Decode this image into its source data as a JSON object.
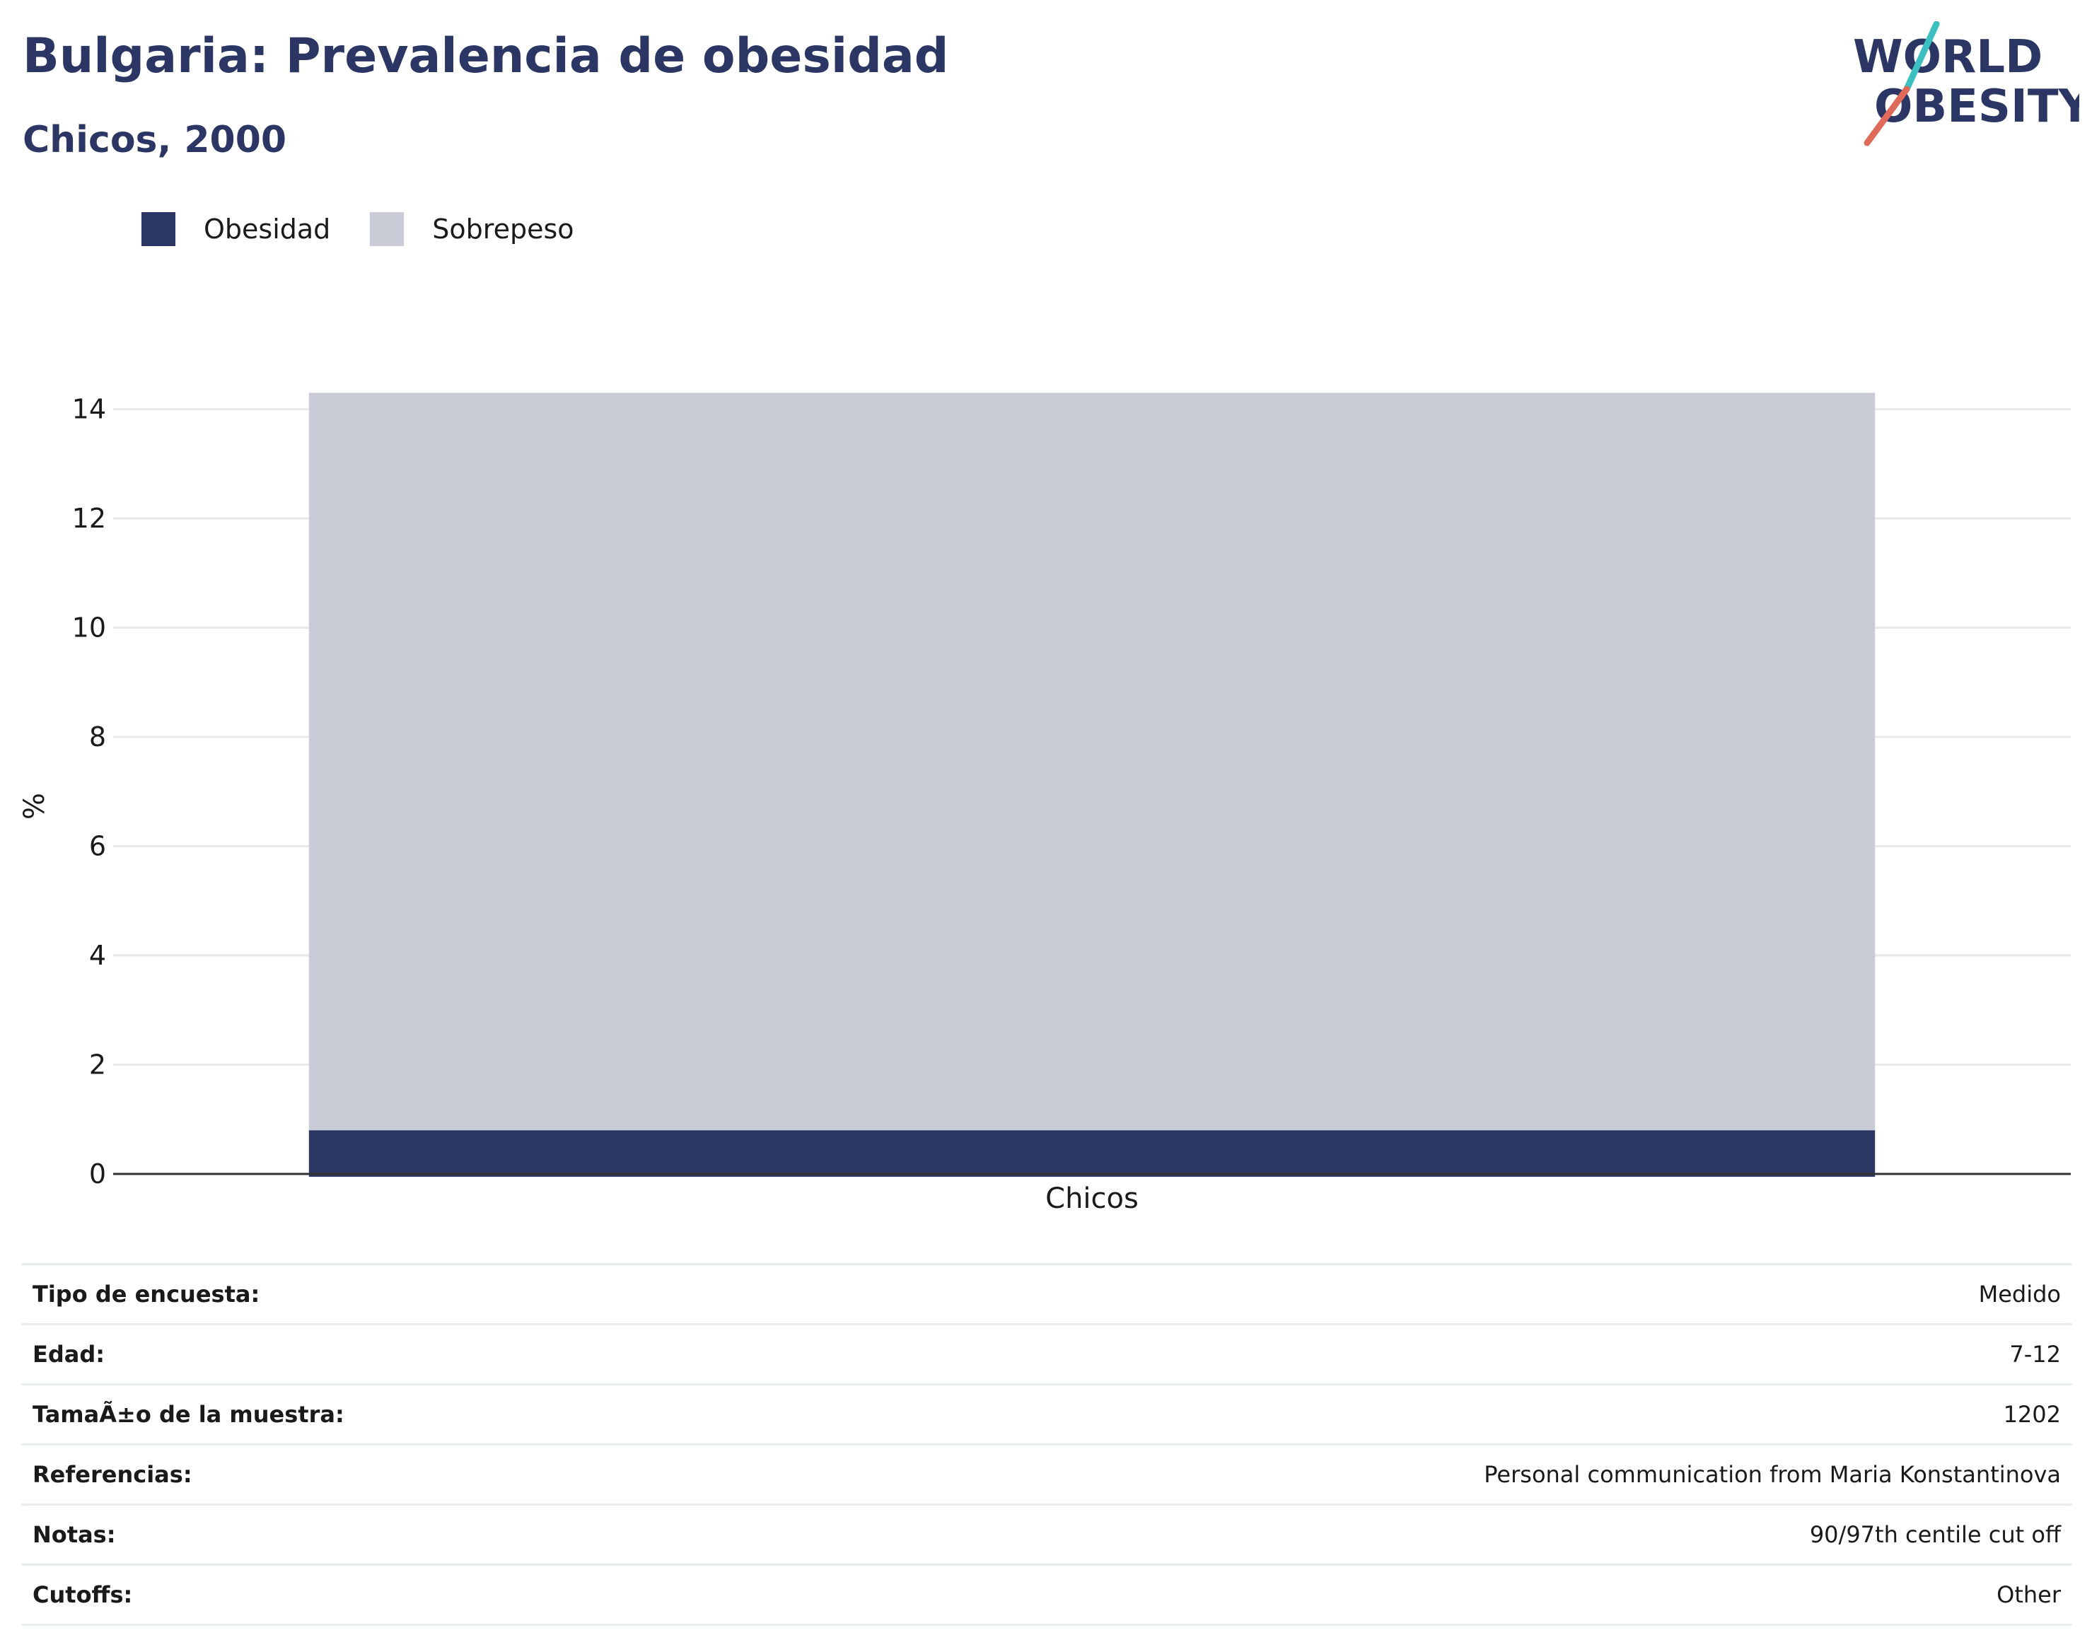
{
  "header": {
    "title": "Bulgaria: Prevalencia de obesidad",
    "subtitle": "Chicos, 2000",
    "logo_line1": "WORLD",
    "logo_line2": "OBESITY"
  },
  "colors": {
    "obesity": "#2b3664",
    "overweight": "#c9ccd7",
    "title": "#2b3664",
    "grid": "#e8e8e8",
    "axis": "#333333",
    "logo_teal": "#3bbfc1",
    "logo_coral": "#e06a5a"
  },
  "legend": [
    {
      "label": "Obesidad",
      "color": "#2b3664"
    },
    {
      "label": "Sobrepeso",
      "color": "#c9ccd7"
    }
  ],
  "chart_data": {
    "type": "bar",
    "stacked": true,
    "categories": [
      "Chicos"
    ],
    "series": [
      {
        "name": "Obesidad",
        "values": [
          0.8
        ]
      },
      {
        "name": "Sobrepeso",
        "values": [
          13.5
        ]
      }
    ],
    "title": "Bulgaria: Prevalencia de obesidad",
    "subtitle": "Chicos, 2000",
    "xlabel": "",
    "ylabel": "%",
    "ylim": [
      0,
      14.5
    ],
    "yticks": [
      0,
      2,
      4,
      6,
      8,
      10,
      12,
      14
    ],
    "grid": true,
    "legend_position": "top-left"
  },
  "info": [
    {
      "key": "Tipo de encuesta:",
      "value": "Medido"
    },
    {
      "key": "Edad:",
      "value": "7-12"
    },
    {
      "key": "TamaÃ±o de la muestra:",
      "value": "1202"
    },
    {
      "key": "Referencias:",
      "value": "Personal communication from Maria Konstantinova"
    },
    {
      "key": "Notas:",
      "value": "90/97th centile cut off"
    },
    {
      "key": "Cutoffs:",
      "value": "Other"
    }
  ]
}
